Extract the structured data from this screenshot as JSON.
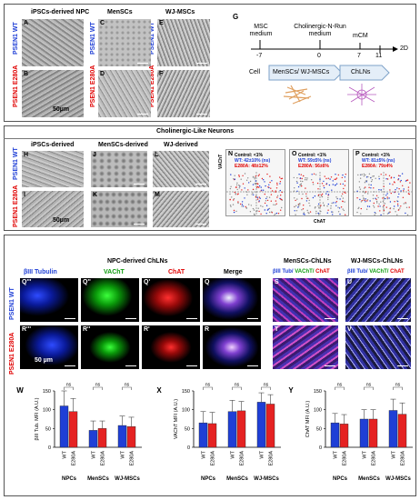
{
  "section1": {
    "col_titles": [
      "iPSCs-derived NPC",
      "MenSCs",
      "WJ-MSCs"
    ],
    "row_labels": [
      "PSEN1 WT",
      "PSEN1 E280A"
    ],
    "panel_letters": [
      "A",
      "B",
      "C",
      "D",
      "E",
      "F"
    ],
    "scale": "50µm"
  },
  "schematic": {
    "letter": "G",
    "label_msc": "MSC medium",
    "label_chol": "Cholinergic-N-Run medium",
    "label_mcm": "mCM",
    "ticks": [
      "-7",
      "0",
      "7",
      "11"
    ],
    "end_label": "2D",
    "cell_label": "Cell",
    "box1": "MenSCs/ WJ-MSCs",
    "box2": "ChLNs"
  },
  "section2": {
    "title": "Cholinergic-Like Neurons",
    "col_titles": [
      "iPSCs-derived",
      "MenSCs-derived",
      "WJ-derived"
    ],
    "row_labels": [
      "PSEN1 WT",
      "PSEN1 E280A"
    ],
    "panel_letters": [
      "H",
      "I",
      "J",
      "K",
      "L",
      "M"
    ],
    "scale": "50µm",
    "flow": {
      "panels": [
        {
          "letter": "N",
          "control": "Control: <1%",
          "wt": "WT: 42±10% (ns)",
          "mut": "E280A: 48±12%"
        },
        {
          "letter": "O",
          "control": "Control: <1%",
          "wt": "WT: 59±5% (ns)",
          "mut": "E280A: 56±6%"
        },
        {
          "letter": "P",
          "control": "Control: <1%",
          "wt": "WT: 81±5% (ns)",
          "mut": "E280A: 79±4%"
        }
      ],
      "ylabel": "VAChT",
      "xlabel": "ChAT"
    }
  },
  "section3": {
    "header_npc": "NPC-derived ChLNs",
    "header_men": "MenSCs-ChLNs",
    "header_wj": "WJ-MSCs-ChLNs",
    "ch_b3": "βIII Tubulin",
    "ch_vacht": "VAChT",
    "ch_chat": "ChAT",
    "ch_merge": "Merge",
    "men_ch_b3": "βIII Tub/",
    "men_ch_vacht": "VAChT/",
    "men_ch_chat": "ChAT",
    "row_labels": [
      "PSEN1 WT",
      "PSEN1 E280A"
    ],
    "panel_letters": [
      "Q'''",
      "Q''",
      "Q'",
      "Q",
      "S",
      "U",
      "R'''",
      "R''",
      "R'",
      "R",
      "T",
      "V"
    ],
    "scale": "50 µm"
  },
  "bar_charts": {
    "ns_label": "ns",
    "colors": {
      "wt": "#1f3fd6",
      "mut": "#e52222"
    },
    "charts": [
      {
        "letter": "W",
        "ylabel": "βIII Tub. MFI (A.U.)",
        "ylim": [
          0,
          150
        ],
        "yticks": [
          0,
          50,
          100,
          150
        ]
      },
      {
        "letter": "X",
        "ylabel": "VAChT MFI (A.U.)",
        "ylim": [
          0,
          150
        ],
        "yticks": [
          0,
          50,
          100,
          150
        ]
      },
      {
        "letter": "Y",
        "ylabel": "ChAT MFI (A.U.)",
        "ylim": [
          0,
          150
        ],
        "yticks": [
          0,
          50,
          100,
          150
        ]
      }
    ]
  },
  "chart_data": [
    {
      "type": "bar",
      "categories": [
        "NPCs",
        "MenSCs",
        "WJ-MSCs"
      ],
      "bar_labels": [
        "WT",
        "E280A"
      ],
      "series": [
        {
          "name": "WT",
          "values": [
            110,
            45,
            58
          ],
          "errors": [
            40,
            25,
            25
          ]
        },
        {
          "name": "E280A",
          "values": [
            95,
            50,
            55
          ],
          "errors": [
            35,
            20,
            25
          ]
        }
      ],
      "ylabel": "βIII Tub. MFI (A.U.)",
      "ylim": [
        0,
        150
      ]
    },
    {
      "type": "bar",
      "categories": [
        "NPCs",
        "MenSCs",
        "WJ-MSCs"
      ],
      "bar_labels": [
        "WT",
        "E280A"
      ],
      "series": [
        {
          "name": "WT",
          "values": [
            65,
            95,
            120
          ],
          "errors": [
            30,
            30,
            25
          ]
        },
        {
          "name": "E280A",
          "values": [
            63,
            97,
            115
          ],
          "errors": [
            30,
            25,
            25
          ]
        }
      ],
      "ylabel": "VAChT MFI (A.U.)",
      "ylim": [
        0,
        150
      ]
    },
    {
      "type": "bar",
      "categories": [
        "NPCs",
        "MenSCs",
        "WJ-MSCs"
      ],
      "bar_labels": [
        "WT",
        "E280A"
      ],
      "series": [
        {
          "name": "WT",
          "values": [
            65,
            75,
            98
          ],
          "errors": [
            25,
            25,
            30
          ]
        },
        {
          "name": "E280A",
          "values": [
            62,
            75,
            88
          ],
          "errors": [
            25,
            25,
            30
          ]
        }
      ],
      "ylabel": "ChAT MFI (A.U.)",
      "ylim": [
        0,
        150
      ]
    }
  ]
}
